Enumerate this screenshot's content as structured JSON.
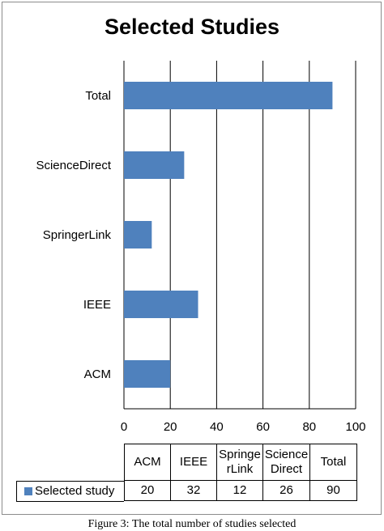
{
  "chart_data": {
    "type": "bar",
    "orientation": "horizontal",
    "title": "Selected Studies",
    "categories": [
      "Total",
      "ScienceDirect",
      "SpringerLink",
      "IEEE",
      "ACM"
    ],
    "series": [
      {
        "name": "Selected study",
        "values": [
          90,
          26,
          12,
          32,
          20
        ],
        "color": "#4f81bd"
      }
    ],
    "xlim": [
      0,
      100
    ],
    "x_ticks": [
      0,
      20,
      40,
      60,
      80,
      100
    ],
    "grid": "vertical",
    "table": {
      "headers": [
        "ACM",
        "IEEE",
        "SpringerLink",
        "ScienceDirect",
        "Total"
      ],
      "header_display": [
        "ACM",
        "IEEE",
        "Springe\nrLink",
        "Science\nDirect",
        "Total"
      ],
      "row_label": "Selected study",
      "values": [
        20,
        32,
        12,
        26,
        90
      ]
    }
  },
  "caption": "Figure 3: The total number of studies selected"
}
